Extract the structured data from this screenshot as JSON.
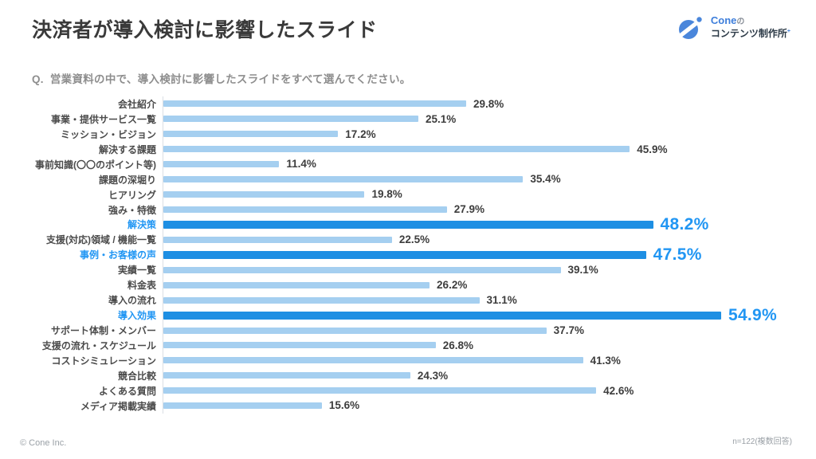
{
  "header": {
    "title": "決済者が導入検討に影響したスライド"
  },
  "logo": {
    "brand": "Cone",
    "brand_suffix": "の",
    "subtitle": "コンテンツ制作所",
    "subtitle_mark": "+",
    "mark_icon": "cone-circle-slash-logo",
    "brand_color": "#3d7edb"
  },
  "question": {
    "label": "Q.",
    "text": "営業資料の中で、導入検討に影響したスライドをすべて選んでください。"
  },
  "footer": {
    "copyright": "© Cone Inc.",
    "sample_note": "n=122(複数回答)"
  },
  "colors": {
    "bar_light": "#a5cff0",
    "bar_highlight": "#1e8fe3",
    "highlight_text": "#2196f3",
    "label_text": "#4b4b4b",
    "value_text": "#3d3d3d",
    "axis_line": "#d9dee4"
  },
  "chart_data": {
    "type": "bar",
    "orientation": "horizontal",
    "title": "決済者が導入検討に影響したスライド",
    "subtitle": "Q. 営業資料の中で、導入検討に影響したスライドをすべて選んでください。",
    "xlabel": "",
    "ylabel": "",
    "xlim": [
      0,
      60
    ],
    "grid": false,
    "value_suffix": "%",
    "categories": [
      "会社紹介",
      "事業・提供サービス一覧",
      "ミッション・ビジョン",
      "解決する課題",
      "事前知識(〇〇のポイント等)",
      "課題の深堀り",
      "ヒアリング",
      "強み・特徴",
      "解決策",
      "支援(対応)領域 / 機能一覧",
      "事例・お客様の声",
      "実績一覧",
      "料金表",
      "導入の流れ",
      "導入効果",
      "サポート体制・メンバー",
      "支援の流れ・スケジュール",
      "コストシミュレーション",
      "競合比較",
      "よくある質問",
      "メディア掲載実績"
    ],
    "values": [
      29.8,
      25.1,
      17.2,
      45.9,
      11.4,
      35.4,
      19.8,
      27.9,
      48.2,
      22.5,
      47.5,
      39.1,
      26.2,
      31.1,
      54.9,
      37.7,
      26.8,
      41.3,
      24.3,
      42.6,
      15.6
    ],
    "highlighted_indices": [
      8,
      10,
      14
    ],
    "n_note": "n=122(複数回答)"
  }
}
